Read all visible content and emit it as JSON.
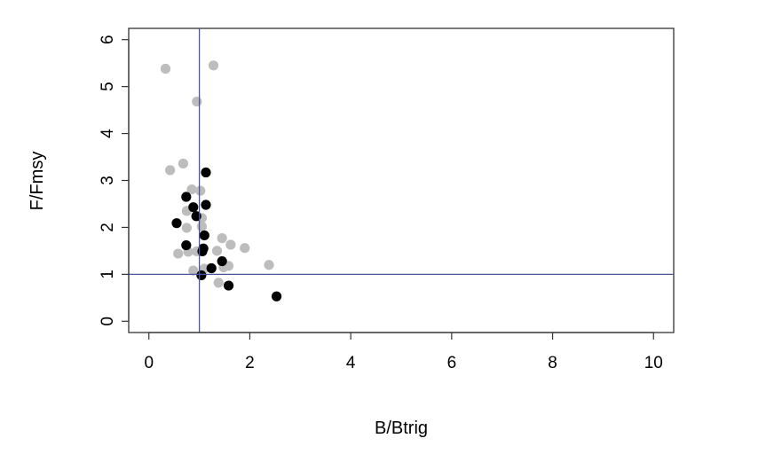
{
  "chart_data": {
    "type": "scatter",
    "title": "",
    "xlabel": "B/Btrig",
    "ylabel": "F/Fmsy",
    "xlim": [
      -0.4,
      10.4
    ],
    "ylim": [
      -0.24,
      6.24
    ],
    "x_ticks": [
      0,
      2,
      4,
      6,
      8,
      10
    ],
    "y_ticks": [
      0,
      1,
      2,
      3,
      4,
      5,
      6
    ],
    "x_tick_labels": [
      "0",
      "2",
      "4",
      "6",
      "8",
      "10"
    ],
    "y_tick_labels": [
      "0",
      "1",
      "2",
      "3",
      "4",
      "5",
      "6"
    ],
    "grid": false,
    "legend": "none",
    "reference_lines": {
      "vertical_x": 1.0,
      "horizontal_y": 1.0,
      "color": "#4a55a2"
    },
    "series": [
      {
        "color": "#bdbdbd",
        "points": [
          {
            "x": 0.33,
            "y": 5.38
          },
          {
            "x": 1.28,
            "y": 5.45
          },
          {
            "x": 0.95,
            "y": 4.68
          },
          {
            "x": 0.42,
            "y": 3.22
          },
          {
            "x": 0.68,
            "y": 3.36
          },
          {
            "x": 0.85,
            "y": 2.81
          },
          {
            "x": 1.02,
            "y": 2.78
          },
          {
            "x": 0.75,
            "y": 2.35
          },
          {
            "x": 1.05,
            "y": 2.2
          },
          {
            "x": 0.75,
            "y": 1.99
          },
          {
            "x": 1.05,
            "y": 2.02
          },
          {
            "x": 1.45,
            "y": 1.77
          },
          {
            "x": 1.62,
            "y": 1.63
          },
          {
            "x": 1.9,
            "y": 1.56
          },
          {
            "x": 0.58,
            "y": 1.44
          },
          {
            "x": 0.78,
            "y": 1.48
          },
          {
            "x": 0.95,
            "y": 1.49
          },
          {
            "x": 1.35,
            "y": 1.5
          },
          {
            "x": 2.38,
            "y": 1.2
          },
          {
            "x": 1.58,
            "y": 1.18
          },
          {
            "x": 1.48,
            "y": 1.15
          },
          {
            "x": 1.1,
            "y": 1.12
          },
          {
            "x": 0.88,
            "y": 1.08
          },
          {
            "x": 1.38,
            "y": 0.82
          }
        ]
      },
      {
        "color": "#000000",
        "points": [
          {
            "x": 1.13,
            "y": 3.17
          },
          {
            "x": 0.74,
            "y": 2.65
          },
          {
            "x": 0.88,
            "y": 2.43
          },
          {
            "x": 1.13,
            "y": 2.48
          },
          {
            "x": 0.94,
            "y": 2.24
          },
          {
            "x": 0.55,
            "y": 2.09
          },
          {
            "x": 1.1,
            "y": 1.83
          },
          {
            "x": 0.74,
            "y": 1.62
          },
          {
            "x": 1.08,
            "y": 1.55
          },
          {
            "x": 1.06,
            "y": 1.49
          },
          {
            "x": 1.45,
            "y": 1.28
          },
          {
            "x": 1.24,
            "y": 1.13
          },
          {
            "x": 1.04,
            "y": 0.98
          },
          {
            "x": 1.58,
            "y": 0.76
          },
          {
            "x": 2.53,
            "y": 0.53
          }
        ]
      }
    ]
  }
}
